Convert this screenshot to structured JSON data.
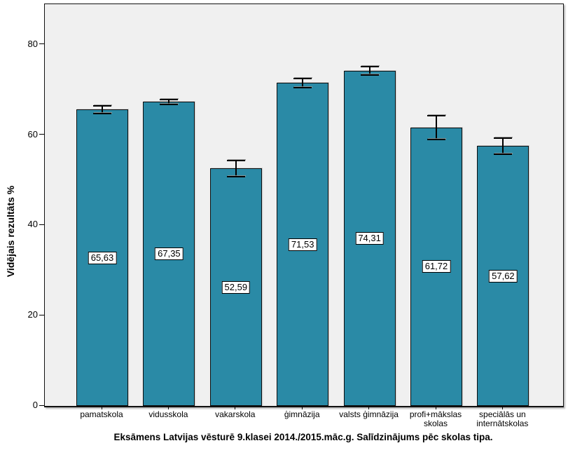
{
  "chart_data": {
    "type": "bar",
    "title": "Eksāmens Latvijas vēsturē 9.klasei 2014./2015.māc.g. Salīdzinājums pēc skolas tipa.",
    "ylabel": "Vidējais rezultāts %",
    "xlabel": "",
    "categories": [
      "pamatskola",
      "vidusskola",
      "vakarskola",
      "ģimnāzija",
      "valsts ģimnāzija",
      "profi+mākslas\nskolas",
      "speciālās un\ninternātskolas"
    ],
    "values": [
      65.63,
      67.35,
      52.59,
      71.53,
      74.31,
      61.72,
      57.62
    ],
    "value_labels": [
      "65,63",
      "67,35",
      "52,59",
      "71,53",
      "74,31",
      "61,72",
      "57,62"
    ],
    "error_low": [
      64.78,
      66.75,
      50.79,
      70.53,
      73.38,
      59.08,
      55.83
    ],
    "error_high": [
      66.48,
      67.95,
      54.39,
      72.53,
      75.24,
      64.36,
      59.41
    ],
    "y_ticks": [
      0,
      20,
      40,
      60,
      80
    ],
    "ylim": [
      0,
      89
    ],
    "grid": false,
    "legend": "none",
    "bar_color": "#2A8AA6",
    "bar_border_color": "#0d0d0d",
    "plot_bg": "#F0F0F0",
    "label_box_bg": "#FFFFFF",
    "label_box_border": "#000000"
  }
}
